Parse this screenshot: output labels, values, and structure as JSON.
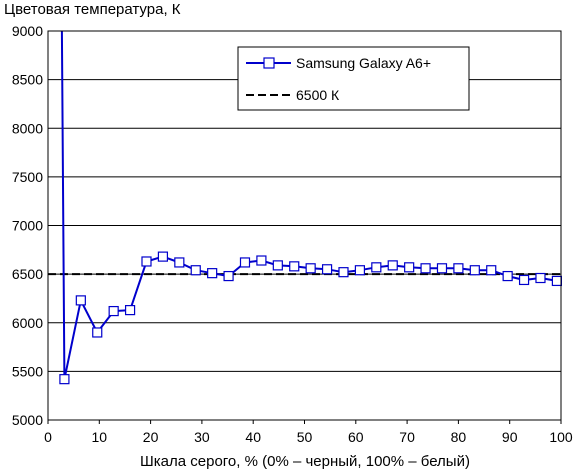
{
  "chart_data": {
    "type": "line",
    "title": "",
    "ylabel": "Цветовая температура, К",
    "xlabel": "Шкала серого, % (0% – черный, 100% – белый)",
    "xlim": [
      0,
      100
    ],
    "ylim": [
      5000,
      9000
    ],
    "xticks": [
      0,
      10,
      20,
      30,
      40,
      50,
      60,
      70,
      80,
      90,
      100
    ],
    "yticks": [
      5000,
      5500,
      6000,
      6500,
      7000,
      7500,
      8000,
      8500,
      9000
    ],
    "grid": "horizontal",
    "legend_position": "top-right",
    "series": [
      {
        "name": "Samsung Galaxy A6+",
        "color": "#0000cc",
        "marker": "square",
        "style": "solid",
        "x": [
          3.2,
          6.4,
          9.6,
          12.8,
          16.0,
          19.2,
          22.4,
          25.6,
          28.8,
          32.0,
          35.2,
          38.4,
          41.6,
          44.8,
          48.0,
          51.2,
          54.4,
          57.6,
          60.8,
          64.0,
          67.2,
          70.4,
          73.6,
          76.8,
          80.0,
          83.2,
          86.4,
          89.6,
          92.8,
          96.0,
          99.2
        ],
        "y": [
          5420,
          6230,
          5900,
          6120,
          6130,
          6630,
          6680,
          6620,
          6540,
          6510,
          6480,
          6620,
          6640,
          6590,
          6580,
          6560,
          6550,
          6520,
          6540,
          6570,
          6590,
          6570,
          6560,
          6560,
          6560,
          6540,
          6540,
          6480,
          6440,
          6460,
          6430
        ],
        "offscale_start": {
          "x": 2.7,
          "y": 9000
        },
        "offscale_values": [
          8600,
          7000
        ]
      },
      {
        "name": "6500 К",
        "color": "#000000",
        "style": "dashed",
        "x": [
          0,
          100
        ],
        "y": [
          6500,
          6500
        ]
      }
    ]
  }
}
